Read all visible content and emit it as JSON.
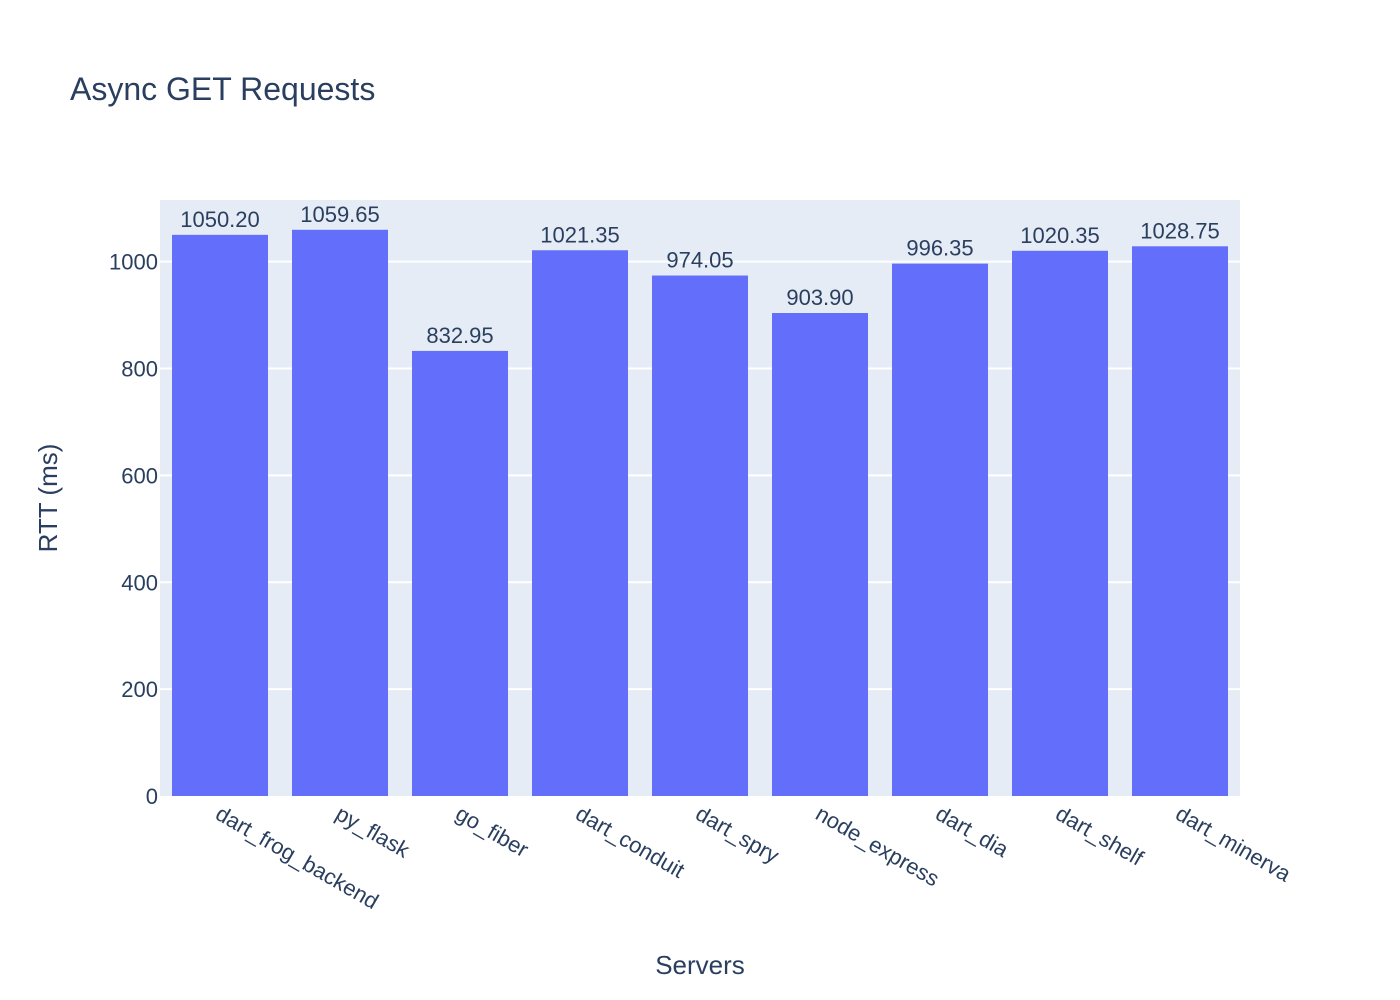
{
  "chart_data": {
    "type": "bar",
    "title": "Async GET Requests",
    "xlabel": "Servers",
    "ylabel": "RTT (ms)",
    "categories": [
      "dart_frog_backend",
      "py_flask",
      "go_fiber",
      "dart_conduit",
      "dart_spry",
      "node_express",
      "dart_dia",
      "dart_shelf",
      "dart_minerva"
    ],
    "values": [
      1050.2,
      1059.65,
      832.95,
      1021.35,
      974.05,
      903.9,
      996.35,
      1020.35,
      1028.75
    ],
    "value_labels": [
      "1050.20",
      "1059.65",
      "832.95",
      "1021.35",
      "974.05",
      "903.90",
      "996.35",
      "1020.35",
      "1028.75"
    ],
    "y_ticks": [
      0,
      200,
      400,
      600,
      800,
      1000
    ],
    "ylim": [
      0,
      1115.4
    ],
    "grid": true,
    "colors": {
      "bar": "#636efa",
      "plot_bg": "#e5ecf6",
      "grid": "#ffffff",
      "text": "#2a3f5f"
    }
  }
}
